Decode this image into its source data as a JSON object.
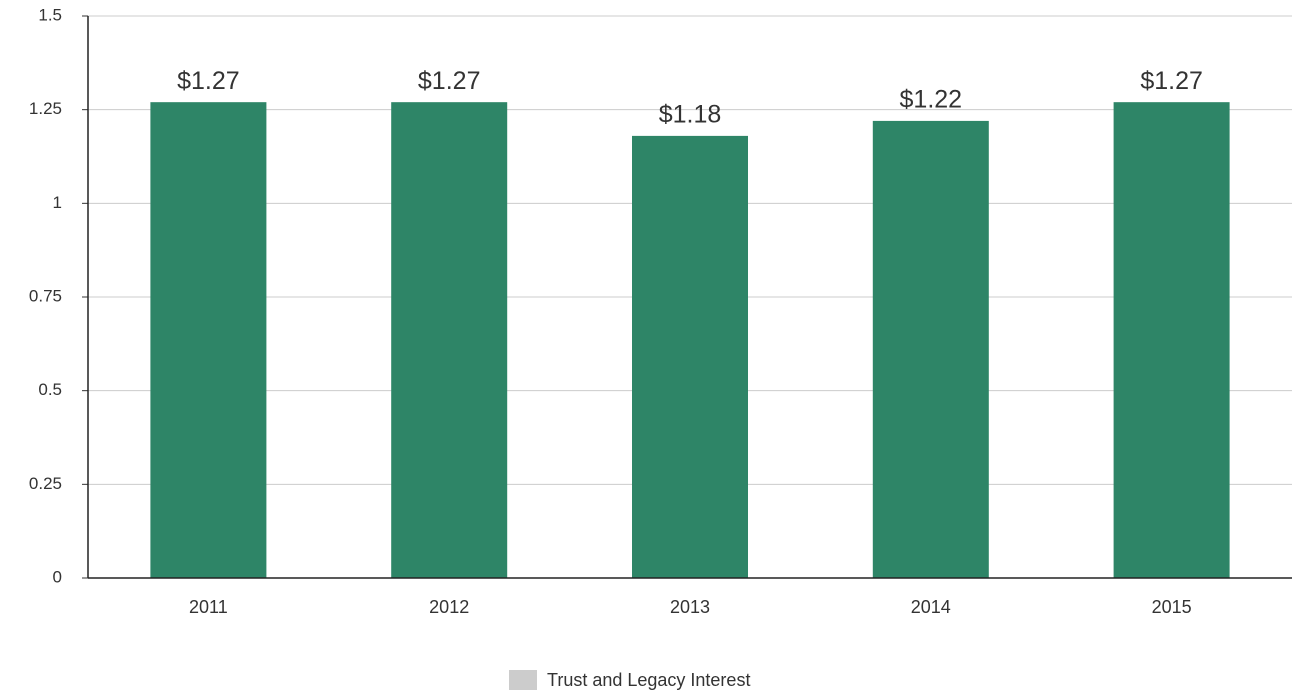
{
  "chart_data": {
    "type": "bar",
    "categories": [
      "2011",
      "2012",
      "2013",
      "2014",
      "2015"
    ],
    "series": [
      {
        "name": "Trust and Legacy Interest",
        "color": "#2e8567",
        "legend_color": "#cccccc",
        "values": [
          1.27,
          1.27,
          1.18,
          1.22,
          1.27
        ],
        "value_labels": [
          "$1.27",
          "$1.27",
          "$1.18",
          "$1.22",
          "$1.27"
        ]
      }
    ],
    "ylim": [
      0,
      1.5
    ],
    "yticks": [
      0,
      0.25,
      0.5,
      0.75,
      1,
      1.25,
      1.5
    ],
    "grid": true,
    "legend": "bottom"
  }
}
